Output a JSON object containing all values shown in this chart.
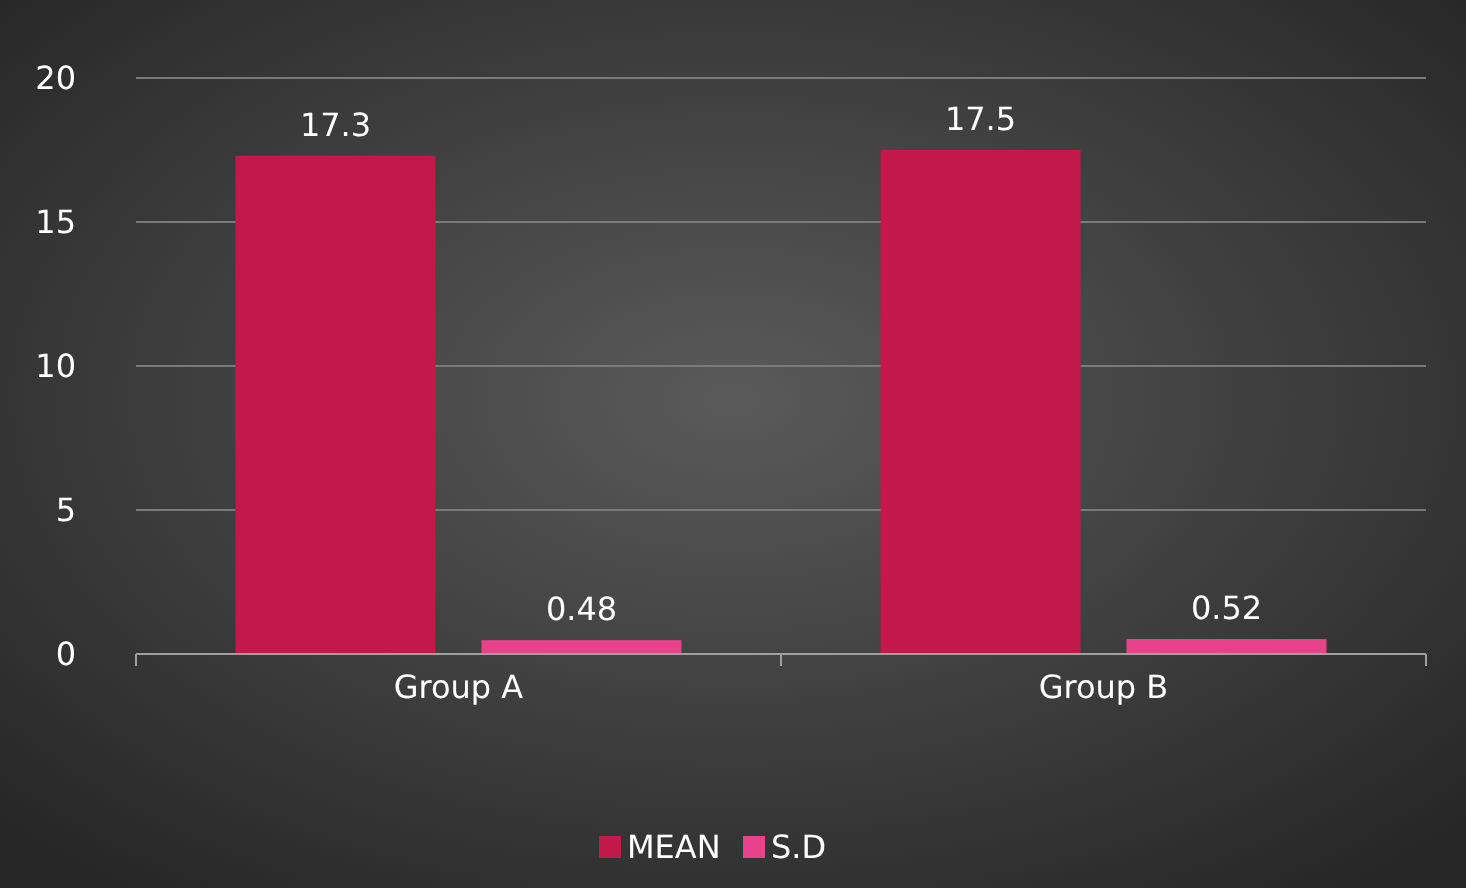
{
  "chart_data": {
    "type": "bar",
    "categories": [
      "Group A",
      "Group B"
    ],
    "series": [
      {
        "name": "MEAN",
        "color": "#c2184c",
        "values": [
          17.3,
          17.5
        ]
      },
      {
        "name": "S.D",
        "color": "#e8438a",
        "values": [
          0.48,
          0.52
        ]
      }
    ],
    "ylim": [
      0,
      20
    ],
    "yticks": [
      0,
      5,
      10,
      15,
      20
    ],
    "grid": "y",
    "legend": "bottom",
    "data_labels": true
  }
}
